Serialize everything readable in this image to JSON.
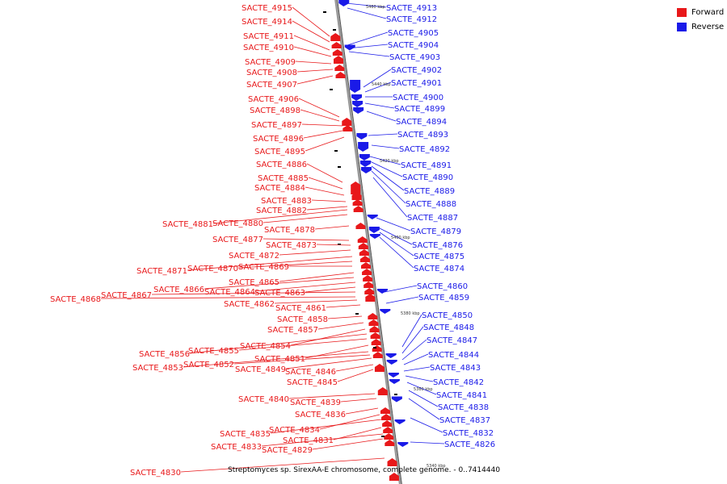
{
  "colors": {
    "forward": "#e8181a",
    "reverse": "#1a1ae8",
    "backbone": "#808080",
    "tick": "#000000"
  },
  "legend": [
    {
      "label": "Forward",
      "color": "#e8181a"
    },
    {
      "label": "Reverse",
      "color": "#1a1ae8"
    }
  ],
  "caption": "Streptomyces sp. SirexAA-E chromosome, complete genome. - 0..7414440",
  "kbp_labels": [
    "5460 kbp",
    "5440 kbp",
    "5420 kbp",
    "5400 kbp",
    "5380 kbp",
    "5360 kbp",
    "5340 kbp"
  ],
  "forward_labels": [
    "SACTE_4915",
    "SACTE_4914",
    "SACTE_4911",
    "SACTE_4910",
    "SACTE_4909",
    "SACTE_4908",
    "SACTE_4907",
    "SACTE_4906",
    "SACTE_4898",
    "SACTE_4897",
    "SACTE_4896",
    "SACTE_4895",
    "SACTE_4886",
    "SACTE_4885",
    "SACTE_4884",
    "SACTE_4883",
    "SACTE_4882",
    "SACTE_4881",
    "SACTE_4880",
    "SACTE_4878",
    "SACTE_4877",
    "SACTE_4873",
    "SACTE_4872",
    "SACTE_4871",
    "SACTE_4870",
    "SACTE_4869",
    "SACTE_4865",
    "SACTE_4866",
    "SACTE_4864",
    "SACTE_4863",
    "SACTE_4867",
    "SACTE_4868",
    "SACTE_4862",
    "SACTE_4861",
    "SACTE_4858",
    "SACTE_4857",
    "SACTE_4854",
    "SACTE_4856",
    "SACTE_4855",
    "SACTE_4851",
    "SACTE_4853",
    "SACTE_4852",
    "SACTE_4849",
    "SACTE_4846",
    "SACTE_4845",
    "SACTE_4840",
    "SACTE_4839",
    "SACTE_4836",
    "SACTE_4834",
    "SACTE_4835",
    "SACTE_4831",
    "SACTE_4833",
    "SACTE_4829",
    "SACTE_4830"
  ],
  "reverse_labels": [
    "SACTE_4913",
    "SACTE_4912",
    "SACTE_4905",
    "SACTE_4904",
    "SACTE_4903",
    "SACTE_4902",
    "SACTE_4901",
    "SACTE_4900",
    "SACTE_4899",
    "SACTE_4894",
    "SACTE_4893",
    "SACTE_4892",
    "SACTE_4891",
    "SACTE_4890",
    "SACTE_4889",
    "SACTE_4888",
    "SACTE_4887",
    "SACTE_4879",
    "SACTE_4876",
    "SACTE_4875",
    "SACTE_4874",
    "SACTE_4860",
    "SACTE_4859",
    "SACTE_4850",
    "SACTE_4848",
    "SACTE_4847",
    "SACTE_4844",
    "SACTE_4843",
    "SACTE_4842",
    "SACTE_4841",
    "SACTE_4838",
    "SACTE_4837",
    "SACTE_4832",
    "SACTE_4826"
  ]
}
